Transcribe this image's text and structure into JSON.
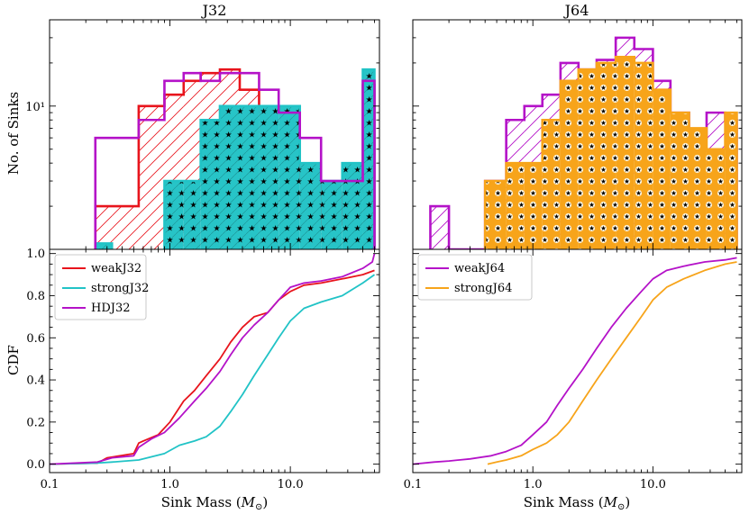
{
  "chart_data": [
    {
      "panel": "top-left",
      "type": "histogram",
      "title": "J32",
      "ylabel": "No. of Sinks",
      "yscale": "log",
      "ylim": [
        1,
        40
      ],
      "yticklabels": [
        "10¹"
      ],
      "xscale": "log",
      "xlim": [
        0.1,
        55
      ],
      "bin_edges": [
        0.24,
        0.33,
        0.55,
        0.9,
        1.3,
        1.8,
        2.6,
        3.8,
        5.5,
        8.0,
        12.0,
        18.0,
        27.0,
        40.0,
        50.0
      ],
      "series": [
        {
          "name": "weakJ32",
          "color": "#e8141c",
          "hatch": "diagonal",
          "counts": [
            2,
            2,
            10,
            12,
            15,
            17,
            18,
            13,
            9,
            9,
            3,
            1.5,
            2.5,
            14
          ]
        },
        {
          "name": "strongJ32",
          "color": "#21c3c6",
          "hatch": "stars",
          "counts": [
            1.1,
            0,
            0,
            3,
            3,
            8,
            10,
            10,
            10,
            10,
            4,
            3,
            4,
            18
          ]
        },
        {
          "name": "HDJ32",
          "color": "#b412c8",
          "hatch": "none",
          "counts": [
            6,
            6,
            8,
            15,
            17,
            15,
            17,
            17,
            13,
            9,
            6,
            3,
            3,
            15
          ]
        }
      ]
    },
    {
      "panel": "top-right",
      "type": "histogram",
      "title": "J64",
      "yscale": "log",
      "ylim": [
        1,
        40
      ],
      "xscale": "log",
      "xlim": [
        0.1,
        55
      ],
      "bin_edges": [
        0.14,
        0.2,
        0.28,
        0.4,
        0.6,
        0.85,
        1.2,
        1.7,
        2.4,
        3.4,
        4.9,
        7.0,
        10.0,
        14.0,
        20.0,
        28.0,
        40.0,
        50.0
      ],
      "series": [
        {
          "name": "weakJ64",
          "color": "#b412c8",
          "hatch": "diagonal",
          "counts": [
            2,
            1,
            1,
            3,
            8,
            10,
            12,
            20,
            18,
            21,
            30,
            25,
            15,
            9,
            6,
            9,
            8
          ]
        },
        {
          "name": "strongJ64",
          "color": "#f7a41a",
          "hatch": "dots-stars",
          "counts": [
            0,
            0,
            0,
            3,
            4,
            4,
            8,
            15,
            18,
            20,
            22,
            20,
            13,
            9,
            7,
            5,
            9
          ]
        }
      ]
    },
    {
      "panel": "bottom-left",
      "type": "line",
      "ylabel": "CDF",
      "xlabel": "Sink Mass (M⊙)",
      "xscale": "log",
      "xlim": [
        0.1,
        55
      ],
      "ylim": [
        -0.04,
        1.02
      ],
      "xticks": [
        0.1,
        1.0,
        10.0
      ],
      "xticklabels": [
        "0.1",
        "1.0",
        "10.0"
      ],
      "yticks": [
        0.0,
        0.2,
        0.4,
        0.6,
        0.8,
        1.0
      ],
      "yticklabels": [
        "0.0",
        "0.2",
        "0.4",
        "0.6",
        "0.8",
        "1.0"
      ],
      "legend": "top-left",
      "series": [
        {
          "name": "weakJ32",
          "color": "#e8141c",
          "x": [
            0.1,
            0.25,
            0.3,
            0.5,
            0.55,
            0.6,
            0.8,
            1.0,
            1.3,
            1.6,
            2.0,
            2.6,
            3.2,
            4.0,
            5.0,
            6.5,
            8.0,
            10.0,
            13.0,
            18.0,
            27.0,
            40.0,
            50.0
          ],
          "y": [
            0.0,
            0.005,
            0.03,
            0.05,
            0.1,
            0.11,
            0.14,
            0.2,
            0.3,
            0.35,
            0.42,
            0.5,
            0.58,
            0.65,
            0.7,
            0.72,
            0.78,
            0.82,
            0.85,
            0.86,
            0.88,
            0.9,
            0.92
          ]
        },
        {
          "name": "strongJ32",
          "color": "#21c3c6",
          "x": [
            0.1,
            0.24,
            0.33,
            0.55,
            0.9,
            1.2,
            1.6,
            2.0,
            2.6,
            3.2,
            4.0,
            5.0,
            6.5,
            8.0,
            10.0,
            13.0,
            18.0,
            27.0,
            40.0,
            50.0
          ],
          "y": [
            0.0,
            0.005,
            0.01,
            0.02,
            0.05,
            0.09,
            0.11,
            0.13,
            0.18,
            0.25,
            0.33,
            0.42,
            0.52,
            0.6,
            0.68,
            0.74,
            0.77,
            0.8,
            0.86,
            0.9
          ]
        },
        {
          "name": "HDJ32",
          "color": "#b412c8",
          "x": [
            0.1,
            0.25,
            0.33,
            0.5,
            0.55,
            0.7,
            0.9,
            1.2,
            1.6,
            2.0,
            2.6,
            3.2,
            4.0,
            5.0,
            6.5,
            8.0,
            10.0,
            13.0,
            18.0,
            27.0,
            40.0,
            48.0,
            50.0
          ],
          "y": [
            0.0,
            0.01,
            0.03,
            0.04,
            0.08,
            0.12,
            0.15,
            0.22,
            0.3,
            0.36,
            0.44,
            0.52,
            0.6,
            0.66,
            0.72,
            0.78,
            0.84,
            0.86,
            0.87,
            0.89,
            0.93,
            0.96,
            1.0
          ]
        }
      ],
      "legend_labels": [
        "weakJ32",
        "strongJ32",
        "HDJ32"
      ]
    },
    {
      "panel": "bottom-right",
      "type": "line",
      "xlabel": "Sink Mass (M⊙)",
      "xscale": "log",
      "xlim": [
        0.1,
        55
      ],
      "ylim": [
        -0.04,
        1.02
      ],
      "xticks": [
        0.1,
        1.0,
        10.0
      ],
      "xticklabels": [
        "0.1",
        "1.0",
        "10.0"
      ],
      "legend": "top-left",
      "series": [
        {
          "name": "weakJ64",
          "color": "#b412c8",
          "x": [
            0.1,
            0.15,
            0.2,
            0.3,
            0.45,
            0.6,
            0.8,
            1.0,
            1.3,
            1.6,
            2.0,
            2.6,
            3.4,
            4.5,
            6.0,
            8.0,
            10.0,
            13.0,
            18.0,
            27.0,
            40.0,
            50.0
          ],
          "y": [
            0.0,
            0.01,
            0.015,
            0.025,
            0.04,
            0.06,
            0.09,
            0.14,
            0.2,
            0.28,
            0.36,
            0.45,
            0.55,
            0.65,
            0.74,
            0.82,
            0.88,
            0.92,
            0.94,
            0.96,
            0.97,
            0.98
          ]
        },
        {
          "name": "strongJ64",
          "color": "#f7a41a",
          "x": [
            0.42,
            0.5,
            0.6,
            0.8,
            1.0,
            1.3,
            1.6,
            2.0,
            2.6,
            3.4,
            4.5,
            6.0,
            8.0,
            10.0,
            13.0,
            18.0,
            27.0,
            40.0,
            50.0
          ],
          "y": [
            0.0,
            0.01,
            0.02,
            0.04,
            0.07,
            0.1,
            0.14,
            0.2,
            0.3,
            0.4,
            0.5,
            0.6,
            0.7,
            0.78,
            0.84,
            0.88,
            0.92,
            0.95,
            0.96
          ]
        }
      ],
      "legend_labels": [
        "weakJ64",
        "strongJ64"
      ]
    }
  ]
}
